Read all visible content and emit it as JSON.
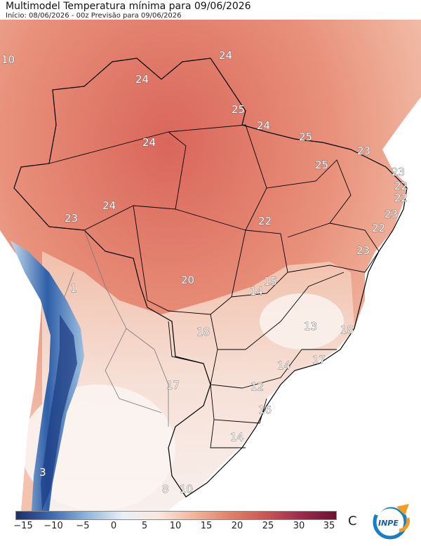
{
  "header": {
    "title": "Multimodel Temperatura mínima para 09/06/2026",
    "subtitle": "Início: 08/06/2026 - 00z  Previsão para 09/06/2026"
  },
  "colorbar": {
    "ticks": [
      "−15",
      "−10",
      "−5",
      "0",
      "5",
      "10",
      "15",
      "20",
      "25",
      "30",
      "35"
    ],
    "unit": "C",
    "colors": [
      "#1c2f6b",
      "#3e69b0",
      "#8fb7dc",
      "#e8f0f7",
      "#fbe8de",
      "#f2b59b",
      "#e48066",
      "#cf5553",
      "#a0294c",
      "#6d1133"
    ]
  },
  "map_labels": [
    "10",
    "24",
    "24",
    "24",
    "25",
    "24",
    "25",
    "23",
    "25",
    "23",
    "22",
    "22",
    "23",
    "22",
    "23",
    "24",
    "23",
    "22",
    "1",
    "20",
    "15",
    "14",
    "13",
    "18",
    "18",
    "17",
    "14",
    "17",
    "12",
    "16",
    "14",
    "3",
    "8",
    "10"
  ],
  "logo": {
    "text": "INPE"
  }
}
